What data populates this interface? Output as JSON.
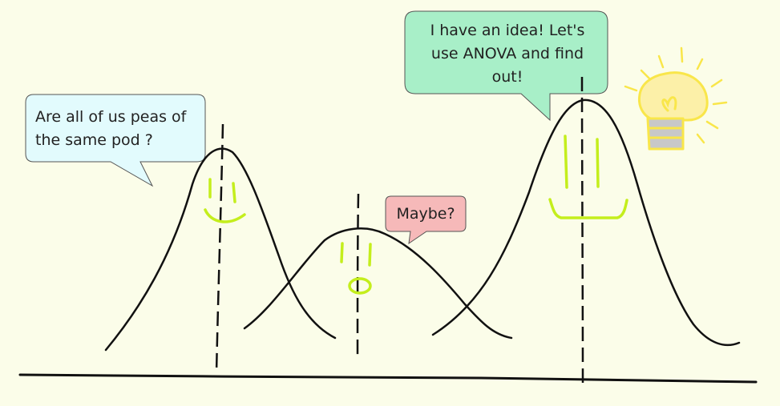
{
  "bubbles": {
    "left": {
      "line1": "Are all of us peas of",
      "line2": "the same pod ?",
      "fill": "#e2fbfd"
    },
    "middle": {
      "text": "Maybe?",
      "fill": "#f6b9b9"
    },
    "right": {
      "line1": "I have an idea! Let's",
      "line2": "use ANOVA and find",
      "line3": "out!",
      "fill": "#a8efc8"
    }
  },
  "colors": {
    "background": "#fbfde9",
    "curve": "#111111",
    "face": "#c4ee1c",
    "bulb_glow": "#f9e64a",
    "bulb_fill": "#fcf0a8",
    "bulb_base": "#c8c8c8"
  },
  "icons": [
    "lightbulb-icon"
  ]
}
